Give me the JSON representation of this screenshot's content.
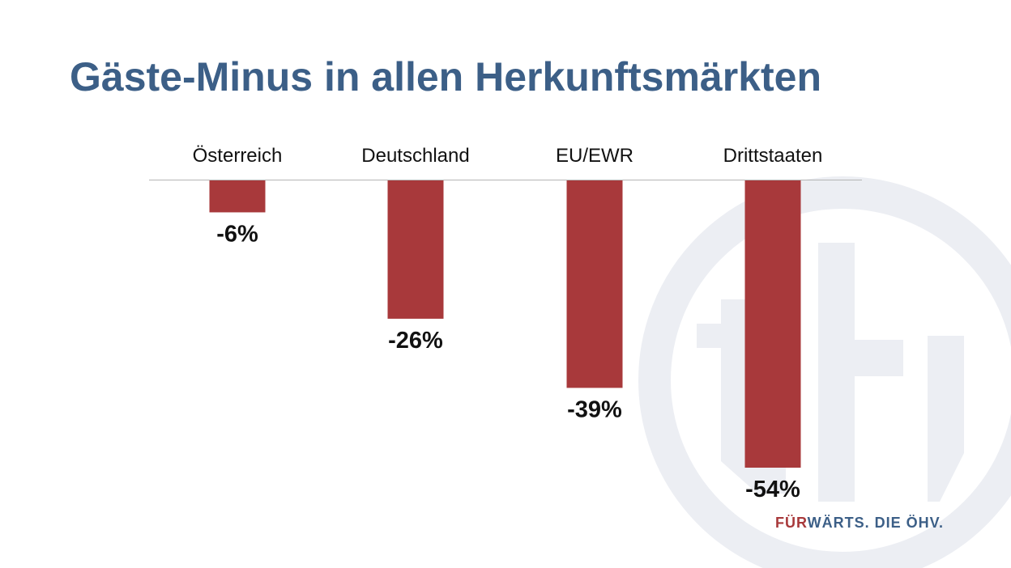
{
  "slide": {
    "title": "Gäste-Minus in allen Herkunftsmärkten",
    "tagline": {
      "part1": "FÜR",
      "part2": "WÄRTS. DIE ÖHV."
    },
    "watermark": "öhv-logo"
  },
  "colors": {
    "bar": "#a8393b",
    "title": "#3c5f87",
    "watermark": "#eceef3"
  },
  "chart_data": {
    "type": "bar",
    "title": "Gäste-Minus in allen Herkunftsmärkten",
    "categories": [
      "Österreich",
      "Deutschland",
      "EU/EWR",
      "Drittstaaten"
    ],
    "values": [
      -6,
      -26,
      -39,
      -54
    ],
    "value_labels": [
      "-6%",
      "-26%",
      "-39%",
      "-54%"
    ],
    "unit": "%",
    "xlabel": "",
    "ylabel": "",
    "ylim": [
      -54,
      0
    ],
    "grid": false,
    "legend": "none",
    "category_labels_position": "top"
  }
}
